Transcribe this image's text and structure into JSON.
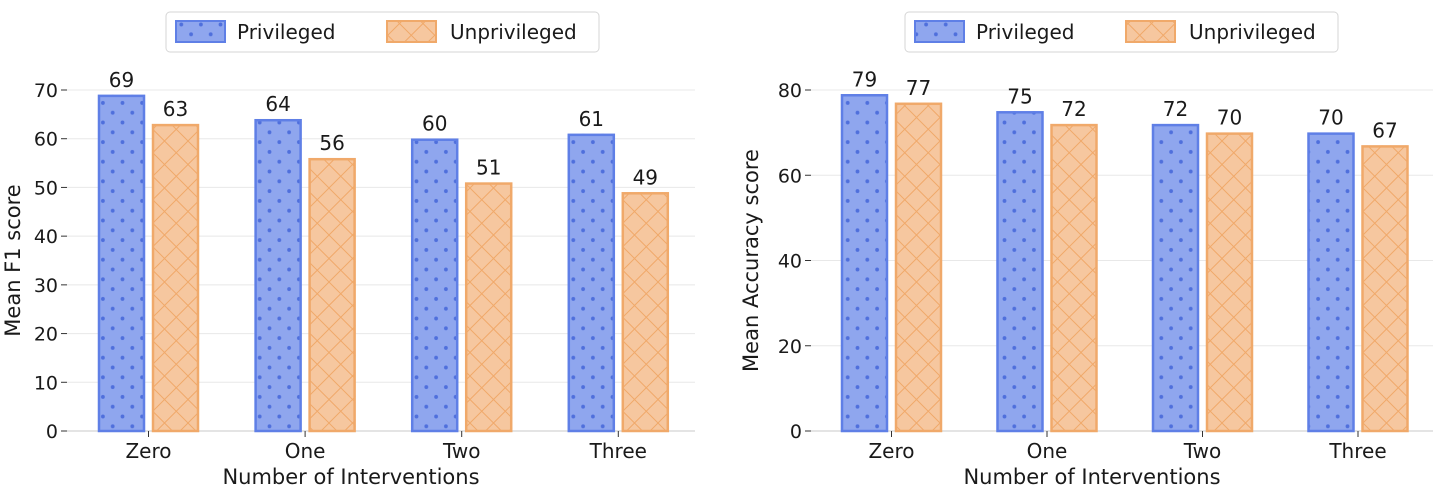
{
  "colors": {
    "privileged_fill": "#8fa6ee",
    "privileged_edge": "#5f7fe6",
    "privileged_dot": "#4f6fdc",
    "unprivileged_fill": "#f6c79f",
    "unprivileged_edge": "#f0a96a",
    "grid": "#e8e8e8",
    "axis": "#c8c8c8"
  },
  "chart_data": [
    {
      "type": "bar",
      "categories": [
        "Zero",
        "One",
        "Two",
        "Three"
      ],
      "series": [
        {
          "name": "Privileged",
          "values": [
            69,
            64,
            60,
            61
          ]
        },
        {
          "name": "Unprivileged",
          "values": [
            63,
            56,
            51,
            49
          ]
        }
      ],
      "xlabel": "Number of Interventions",
      "ylabel": "Mean F1 score",
      "ylim": [
        0,
        70
      ],
      "yticks": [
        0,
        10,
        20,
        30,
        40,
        50,
        60,
        70
      ],
      "grid": true,
      "legend": "top-center",
      "data_labels": true
    },
    {
      "type": "bar",
      "categories": [
        "Zero",
        "One",
        "Two",
        "Three"
      ],
      "series": [
        {
          "name": "Privileged",
          "values": [
            79,
            75,
            72,
            70
          ]
        },
        {
          "name": "Unprivileged",
          "values": [
            77,
            72,
            70,
            67
          ]
        }
      ],
      "xlabel": "Number of Interventions",
      "ylabel": "Mean Accuracy score",
      "ylim": [
        0,
        80
      ],
      "yticks": [
        0,
        20,
        40,
        60,
        80
      ],
      "grid": true,
      "legend": "top-center",
      "data_labels": true
    }
  ]
}
